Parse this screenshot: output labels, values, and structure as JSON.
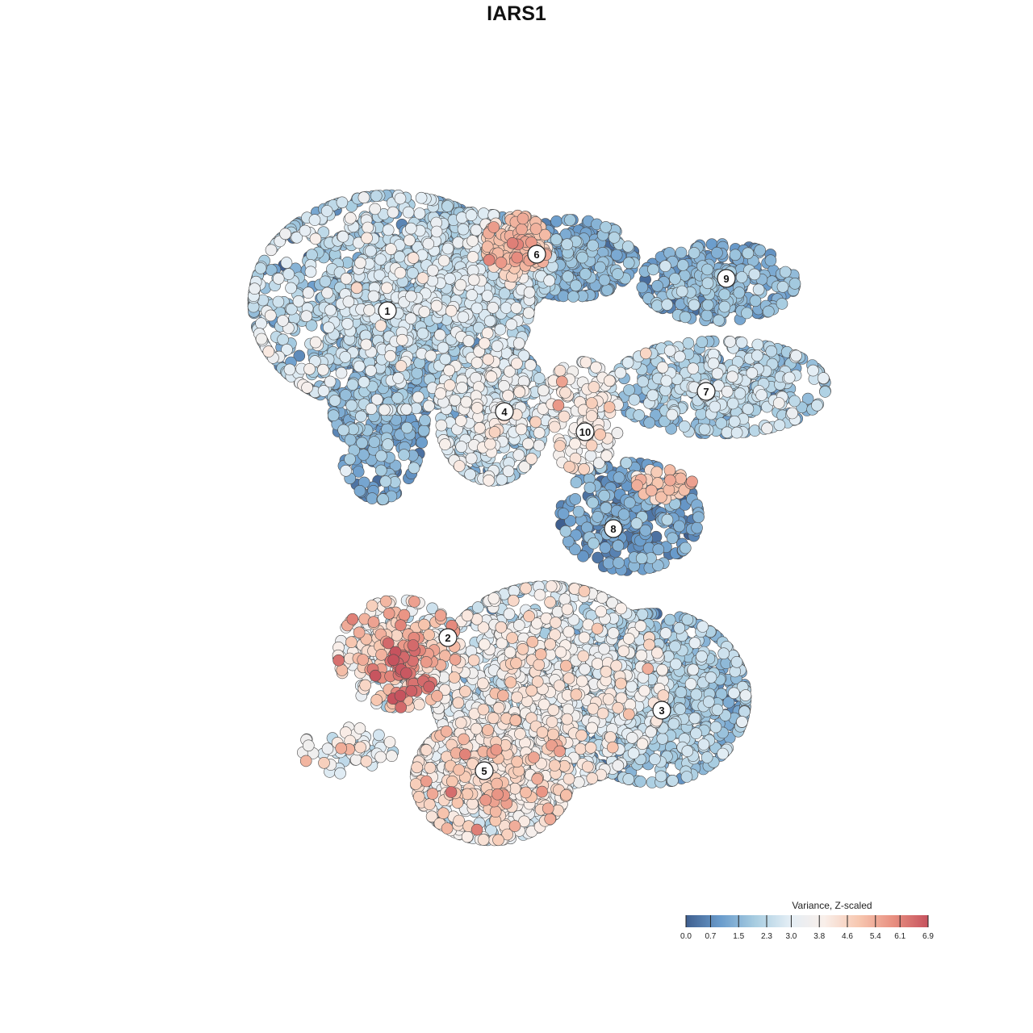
{
  "chart_data": {
    "type": "scatter",
    "title": "IARS1",
    "xlabel": "",
    "ylabel": "",
    "grid": false,
    "axes_visible": false,
    "legend": {
      "title": "Variance, Z-scaled",
      "placement": "bottom-right",
      "ticks": [
        "0.0",
        "0.7",
        "1.5",
        "2.3",
        "3.0",
        "3.8",
        "4.6",
        "5.4",
        "6.1",
        "6.9"
      ],
      "range": [
        0.0,
        6.9
      ],
      "colors": [
        "#3f5f8f",
        "#6a9ccc",
        "#a8cde1",
        "#e4eef5",
        "#f9efea",
        "#f7c7b0",
        "#e88f80",
        "#c6535e"
      ]
    },
    "cluster_labels": [
      {
        "label": "1",
        "x": -0.32,
        "y": 0.51
      },
      {
        "label": "2",
        "x": -0.17,
        "y": -0.3
      },
      {
        "label": "3",
        "x": 0.36,
        "y": -0.48
      },
      {
        "label": "4",
        "x": -0.03,
        "y": 0.26
      },
      {
        "label": "5",
        "x": -0.08,
        "y": -0.63
      },
      {
        "label": "6",
        "x": 0.05,
        "y": 0.65
      },
      {
        "label": "7",
        "x": 0.47,
        "y": 0.31
      },
      {
        "label": "8",
        "x": 0.24,
        "y": -0.03
      },
      {
        "label": "9",
        "x": 0.52,
        "y": 0.59
      },
      {
        "label": "10",
        "x": 0.17,
        "y": 0.21
      }
    ],
    "clusters": [
      {
        "id": "1",
        "n": 1300,
        "shape": "ellipse",
        "cx": -0.31,
        "cy": 0.53,
        "sx": 0.18,
        "sy": 0.14,
        "mean_value": 2.0,
        "spread": 0.8
      },
      {
        "id": "1-arm",
        "n": 380,
        "shape": "ellipse",
        "cx": -0.34,
        "cy": 0.27,
        "sx": 0.06,
        "sy": 0.12,
        "mean_value": 1.2,
        "spread": 0.5
      },
      {
        "id": "1-top",
        "n": 520,
        "shape": "ellipse",
        "cx": -0.12,
        "cy": 0.62,
        "sx": 0.11,
        "sy": 0.07,
        "mean_value": 1.9,
        "spread": 0.7
      },
      {
        "id": "6",
        "n": 160,
        "shape": "ellipse",
        "cx": 0.0,
        "cy": 0.67,
        "sx": 0.04,
        "sy": 0.04,
        "mean_value": 4.8,
        "spread": 0.5
      },
      {
        "id": "6-right",
        "n": 300,
        "shape": "ellipse",
        "cx": 0.14,
        "cy": 0.64,
        "sx": 0.08,
        "sy": 0.05,
        "mean_value": 1.2,
        "spread": 0.5
      },
      {
        "id": "4",
        "n": 520,
        "shape": "ellipse",
        "cx": -0.06,
        "cy": 0.26,
        "sx": 0.07,
        "sy": 0.09,
        "mean_value": 2.4,
        "spread": 0.8
      },
      {
        "id": "10",
        "n": 140,
        "shape": "ellipse",
        "cx": 0.16,
        "cy": 0.25,
        "sx": 0.05,
        "sy": 0.07,
        "mean_value": 3.6,
        "spread": 0.6
      },
      {
        "id": "9",
        "n": 320,
        "shape": "ellipse",
        "cx": 0.5,
        "cy": 0.58,
        "sx": 0.1,
        "sy": 0.05,
        "mean_value": 1.3,
        "spread": 0.5
      },
      {
        "id": "7",
        "n": 460,
        "shape": "ellipse",
        "cx": 0.5,
        "cy": 0.32,
        "sx": 0.14,
        "sy": 0.06,
        "mean_value": 2.0,
        "spread": 0.6
      },
      {
        "id": "8",
        "n": 300,
        "shape": "ellipse",
        "cx": 0.28,
        "cy": 0.0,
        "sx": 0.09,
        "sy": 0.07,
        "mean_value": 1.0,
        "spread": 0.5
      },
      {
        "id": "8-tail",
        "n": 40,
        "shape": "ellipse",
        "cx": 0.36,
        "cy": 0.08,
        "sx": 0.04,
        "sy": 0.02,
        "mean_value": 4.8,
        "spread": 0.4
      },
      {
        "id": "2",
        "n": 300,
        "shape": "ellipse",
        "cx": -0.29,
        "cy": -0.34,
        "sx": 0.08,
        "sy": 0.07,
        "mean_value": 4.0,
        "spread": 1.2
      },
      {
        "id": "2-hot",
        "n": 40,
        "shape": "ellipse",
        "cx": -0.28,
        "cy": -0.38,
        "sx": 0.04,
        "sy": 0.04,
        "mean_value": 6.3,
        "spread": 0.4
      },
      {
        "id": "3",
        "n": 900,
        "shape": "ellipse",
        "cx": 0.34,
        "cy": -0.45,
        "sx": 0.12,
        "sy": 0.11,
        "mean_value": 1.7,
        "spread": 0.6
      },
      {
        "id": "5-center",
        "n": 1100,
        "shape": "ellipse",
        "cx": 0.08,
        "cy": -0.42,
        "sx": 0.15,
        "sy": 0.13,
        "mean_value": 2.9,
        "spread": 0.9
      },
      {
        "id": "5",
        "n": 700,
        "shape": "ellipse",
        "cx": -0.06,
        "cy": -0.65,
        "sx": 0.1,
        "sy": 0.08,
        "mean_value": 3.5,
        "spread": 0.9
      },
      {
        "id": "small-left",
        "n": 60,
        "shape": "ellipse",
        "cx": -0.42,
        "cy": -0.58,
        "sx": 0.06,
        "sy": 0.03,
        "mean_value": 3.2,
        "spread": 0.8
      }
    ]
  }
}
